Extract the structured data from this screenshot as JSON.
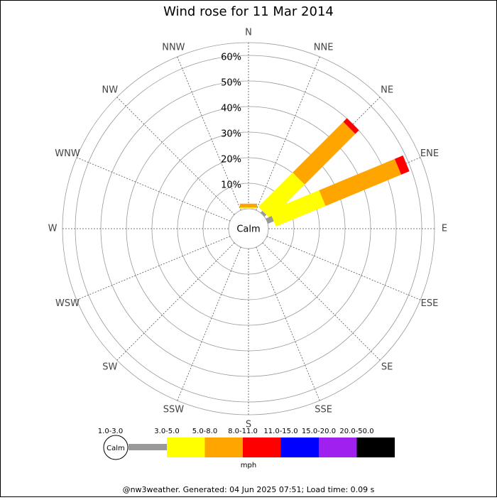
{
  "chart_data": {
    "type": "windrose",
    "title": "Wind rose for 11 Mar 2014",
    "categories": [
      "N",
      "NNE",
      "NE",
      "ENE",
      "E",
      "ESE",
      "SE",
      "SSE",
      "S",
      "SSW",
      "SW",
      "WSW",
      "W",
      "WNW",
      "NW",
      "NNW"
    ],
    "series": [
      {
        "name": "1.0-3.0",
        "color": "#999999",
        "values": [
          0,
          0,
          1,
          2.5,
          0,
          0,
          0,
          0,
          0,
          0,
          0,
          0,
          0,
          0,
          0,
          0
        ]
      },
      {
        "name": "3.0-5.0",
        "color": "#ffff00",
        "values": [
          0.5,
          0,
          19,
          21,
          0,
          0,
          0,
          0,
          0,
          0,
          0,
          0,
          0,
          0,
          0,
          0
        ]
      },
      {
        "name": "5.0-8.0",
        "color": "#ffa500",
        "values": [
          1.5,
          0,
          28,
          32,
          0,
          0,
          0,
          0,
          0,
          0,
          0,
          0,
          0,
          0,
          0,
          0
        ]
      },
      {
        "name": "8.0-11.0",
        "color": "#ff0000",
        "values": [
          0,
          0,
          2,
          3.5,
          0,
          0,
          0,
          0,
          0,
          0,
          0,
          0,
          0,
          0,
          0,
          0
        ]
      },
      {
        "name": "11.0-15.0",
        "color": "#0000ff",
        "values": [
          0,
          0,
          0,
          0,
          0,
          0,
          0,
          0,
          0,
          0,
          0,
          0,
          0,
          0,
          0,
          0
        ]
      },
      {
        "name": "15.0-20.0",
        "color": "#a020f0",
        "values": [
          0,
          0,
          0,
          0,
          0,
          0,
          0,
          0,
          0,
          0,
          0,
          0,
          0,
          0,
          0,
          0
        ]
      },
      {
        "name": "20.0-50.0",
        "color": "#000000",
        "values": [
          0,
          0,
          0,
          0,
          0,
          0,
          0,
          0,
          0,
          0,
          0,
          0,
          0,
          0,
          0,
          0
        ]
      }
    ],
    "ylim": [
      0,
      65
    ],
    "yticks": [
      {
        "value": 10,
        "label": "10%"
      },
      {
        "value": 20,
        "label": "20%"
      },
      {
        "value": 30,
        "label": "30%"
      },
      {
        "value": 40,
        "label": "40%"
      },
      {
        "value": 50,
        "label": "50%"
      },
      {
        "value": 60,
        "label": "60%"
      }
    ],
    "calm_label": "Calm",
    "units_label": "mph",
    "footer": "@nw3weather. Generated: 04 Jun 2025 07:51; Load time: 0.09 s"
  }
}
